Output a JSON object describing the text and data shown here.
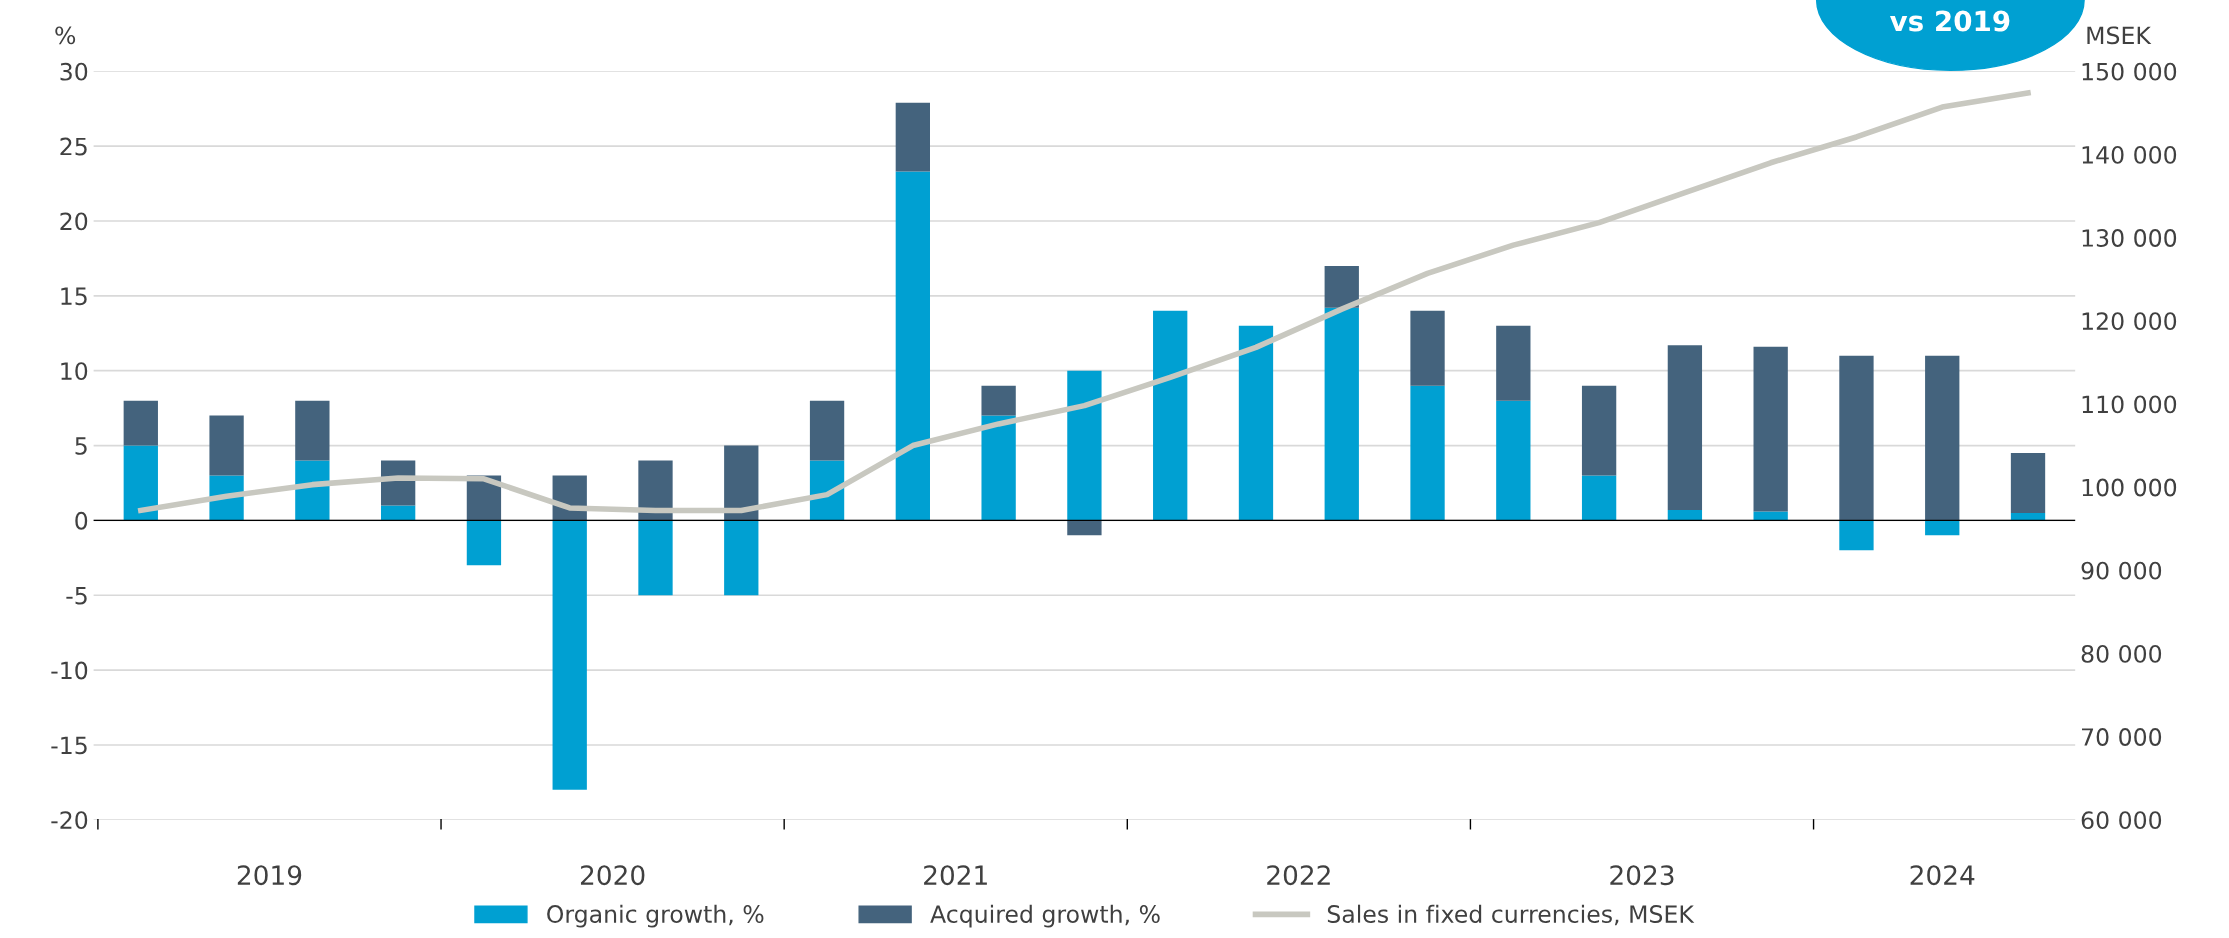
{
  "chart_data": {
    "type": "bar",
    "stacked": true,
    "categories": [
      null,
      null,
      null,
      null,
      null,
      null,
      null,
      null,
      null,
      null,
      null,
      null,
      null,
      null,
      null,
      null,
      null,
      null,
      null,
      null,
      null,
      null,
      null
    ],
    "series": [
      {
        "name": "Organic growth, %",
        "color": "#00a0d2",
        "values": [
          5,
          3,
          4,
          1,
          -3,
          -18,
          -5,
          -5,
          4,
          23.3,
          7,
          10,
          14,
          13,
          14.2,
          9,
          8,
          3,
          0.7,
          0.6,
          -2,
          -1,
          0.5
        ]
      },
      {
        "name": "Acquired growth, %",
        "color": "#44637d",
        "values": [
          3,
          4,
          4,
          3,
          3,
          3,
          4,
          5,
          4,
          4.6,
          2,
          -1,
          0,
          0,
          2.8,
          5,
          5,
          6,
          11,
          11,
          11,
          11,
          4
        ]
      },
      {
        "name": "Sales in fixed currencies, MSEK",
        "type": "line",
        "axis": "y2",
        "color": "#c8c8c0",
        "values": [
          97200,
          98900,
          100300,
          101100,
          101000,
          97500,
          97200,
          97200,
          99100,
          105000,
          107600,
          109800,
          113200,
          116800,
          121400,
          125700,
          129100,
          131800,
          135400,
          139000,
          142100,
          145700,
          147400
        ]
      }
    ],
    "ylabel": "%",
    "y2label": "MSEK",
    "ylim": [
      -20,
      30
    ],
    "yticks": [
      {
        "value": -20,
        "label": "-20"
      },
      {
        "value": -15,
        "label": "-15"
      },
      {
        "value": -10,
        "label": "-10"
      },
      {
        "value": -5,
        "label": "-5"
      },
      0,
      5,
      10,
      15,
      20,
      25,
      30
    ],
    "y2lim": [
      60000,
      150000
    ],
    "y2ticks": [
      {
        "value": 60000,
        "label": "60 000"
      },
      {
        "value": 70000,
        "label": "70 000"
      },
      {
        "value": 80000,
        "label": "80 000"
      },
      {
        "value": 90000,
        "label": "90 000"
      },
      {
        "value": 100000,
        "label": "100 000"
      },
      {
        "value": 110000,
        "label": "110 000"
      },
      {
        "value": 120000,
        "label": "120 000"
      },
      {
        "value": 130000,
        "label": "130 000"
      },
      {
        "value": 140000,
        "label": "140 000"
      },
      {
        "value": 150000,
        "label": "150 000"
      }
    ],
    "annotations": [
      "2019",
      "2020",
      "2021",
      "2022",
      "2023",
      "2024",
      "vs 2019"
    ],
    "grid": "y",
    "legend": "bottom"
  }
}
